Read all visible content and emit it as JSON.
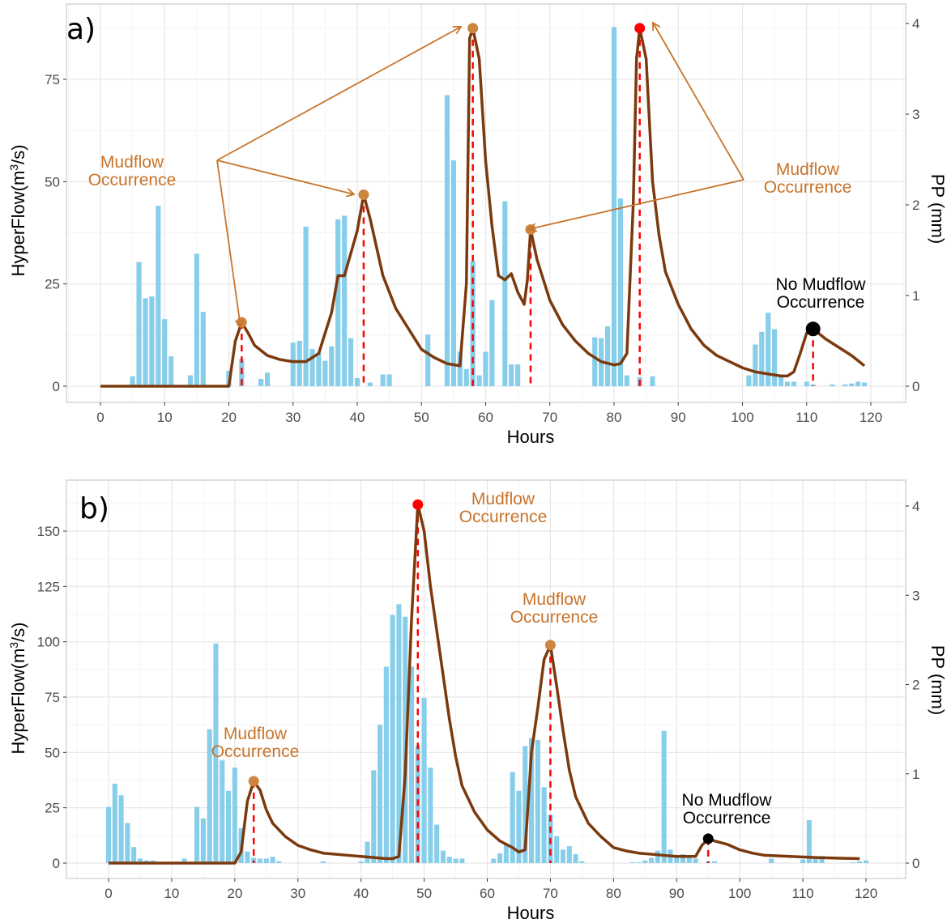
{
  "colors": {
    "bar": "#87CEEB",
    "flow": "#7B3A0E",
    "mudflow": "#CD853F",
    "annotation": "#C8742B",
    "peak": "#FF0000",
    "none": "#000000",
    "dash": "#FF0000"
  },
  "chart_data": [
    {
      "type": "bar+line",
      "panel_label": "a)",
      "xlabel": "Hours",
      "ylabel_parts": [
        "HyperFlow(m",
        "3",
        "/s)"
      ],
      "y2label": "PP (mm)",
      "xlim": [
        -5,
        125
      ],
      "xticks": [
        0,
        10,
        20,
        30,
        40,
        50,
        60,
        70,
        80,
        90,
        100,
        110,
        120
      ],
      "ylim": [
        -4,
        88
      ],
      "yticks": [
        0,
        25,
        50,
        75
      ],
      "y2lim": [
        0,
        4.2
      ],
      "y2ticks": [
        0,
        1,
        2,
        3,
        4
      ],
      "precip_series": {
        "name": "PP (mm)",
        "x": [
          5,
          6,
          7,
          8,
          9,
          10,
          11,
          14,
          15,
          16,
          20,
          22,
          25,
          26,
          30,
          31,
          32,
          33,
          34,
          35,
          36,
          37,
          38,
          39,
          40,
          42,
          44,
          45,
          51,
          54,
          55,
          56,
          57,
          58,
          59,
          60,
          61,
          63,
          64,
          65,
          77,
          78,
          79,
          80,
          81,
          82,
          84,
          86,
          101,
          102,
          103,
          104,
          105,
          106,
          107,
          108,
          110,
          111,
          114,
          116,
          117,
          118,
          119
        ],
        "values": [
          0.11,
          1.37,
          0.97,
          0.99,
          1.99,
          0.74,
          0.33,
          0.12,
          1.46,
          0.82,
          0.17,
          0.3,
          0.08,
          0.15,
          0.48,
          0.5,
          1.76,
          0.41,
          0.37,
          0.28,
          0.44,
          1.84,
          1.88,
          0.53,
          0.09,
          0.04,
          0.13,
          0.13,
          0.57,
          3.21,
          2.49,
          0.38,
          0.19,
          1.38,
          0.12,
          0.38,
          0.95,
          2.04,
          0.24,
          0.24,
          0.54,
          0.53,
          0.66,
          3.96,
          2.07,
          0.12,
          0.1,
          0.11,
          0.12,
          0.46,
          0.6,
          0.81,
          0.63,
          0.13,
          0.05,
          0.05,
          0.05,
          0.02,
          0.02,
          0.02,
          0.03,
          0.05,
          0.04
        ]
      },
      "flow_series": {
        "name": "HyperFlow",
        "x": [
          0,
          20,
          21,
          22,
          23,
          24,
          26,
          28,
          30,
          32,
          34,
          36,
          37,
          38,
          40,
          41,
          42,
          44,
          46,
          48,
          50,
          52,
          54,
          56,
          57,
          57.5,
          58,
          59,
          60,
          61,
          62,
          63,
          64,
          65,
          66,
          66.5,
          67,
          68,
          70,
          72,
          74,
          76,
          78,
          80,
          81,
          82,
          83,
          83.5,
          84,
          85,
          86,
          87,
          88,
          90,
          92,
          94,
          96,
          98,
          100,
          102,
          104,
          106,
          107,
          108,
          109,
          110,
          111,
          113,
          115,
          117,
          119
        ],
        "values": [
          0,
          0,
          11,
          15.6,
          13,
          10,
          7.5,
          6.5,
          6,
          6,
          8,
          18,
          27,
          27,
          38,
          46.8,
          41,
          27,
          19,
          14,
          9,
          7,
          5.5,
          5,
          25,
          85,
          87.5,
          80,
          55,
          39,
          27,
          26,
          27.5,
          23,
          20,
          26,
          38.3,
          31,
          21,
          15,
          11,
          8,
          6,
          5.2,
          5.5,
          8,
          45,
          80,
          87.5,
          80,
          50,
          37,
          28,
          20,
          14,
          10,
          7.5,
          6,
          4.5,
          3.5,
          3,
          2.5,
          2.5,
          3.5,
          8,
          13,
          14,
          11.5,
          9.5,
          7.5,
          5
        ]
      },
      "events": [
        {
          "hour": 22,
          "flow": 15.6,
          "type": "mudflow"
        },
        {
          "hour": 41,
          "flow": 46.8,
          "type": "mudflow"
        },
        {
          "hour": 58,
          "flow": 87.5,
          "type": "mudflow"
        },
        {
          "hour": 67,
          "flow": 38.3,
          "type": "mudflow"
        },
        {
          "hour": 84,
          "flow": 87.5,
          "type": "peak"
        },
        {
          "hour": 111,
          "flow": 14,
          "type": "none"
        }
      ],
      "annotations": [
        {
          "lines": [
            "Mudflow",
            "Occurrence"
          ],
          "type": "mudflow"
        },
        {
          "lines": [
            "Mudflow",
            "Occurrence"
          ],
          "type": "mudflow"
        },
        {
          "lines": [
            "No Mudflow",
            "Occurrence"
          ],
          "type": "none"
        }
      ]
    },
    {
      "type": "bar+line",
      "panel_label": "b)",
      "xlabel": "Hours",
      "ylabel_parts": [
        "HyperFlow(m",
        "3",
        "/s)"
      ],
      "y2label": "PP (mm)",
      "xlim": [
        -5,
        125
      ],
      "xticks": [
        0,
        10,
        20,
        30,
        40,
        50,
        60,
        70,
        80,
        90,
        100,
        110,
        120
      ],
      "ylim": [
        -8,
        168
      ],
      "yticks": [
        0,
        25,
        50,
        75,
        100,
        125,
        150
      ],
      "y2lim": [
        0,
        4.2
      ],
      "y2ticks": [
        0,
        1,
        2,
        3,
        4
      ],
      "precip_series": {
        "name": "PP (mm)",
        "x": [
          0,
          1,
          2,
          3,
          4,
          5,
          6,
          7,
          12,
          14,
          15,
          16,
          17,
          18,
          19,
          20,
          21,
          22,
          23,
          24,
          25,
          26,
          27,
          34,
          40,
          41,
          42,
          43,
          44,
          45,
          46,
          47,
          48,
          49,
          50,
          51,
          52,
          53,
          54,
          55,
          56,
          61,
          62,
          63,
          64,
          65,
          66,
          67,
          68,
          69,
          70,
          71,
          72,
          73,
          74,
          75,
          83,
          84,
          85,
          86,
          87,
          88,
          89,
          90,
          91,
          92,
          93,
          95,
          96,
          105,
          110,
          111,
          112,
          113,
          118,
          119,
          120
        ],
        "values": [
          0.63,
          0.89,
          0.76,
          0.45,
          0.18,
          0.05,
          0.03,
          0.03,
          0.05,
          0.63,
          0.5,
          1.5,
          2.46,
          1.15,
          0.81,
          1.07,
          0.39,
          0.13,
          0.06,
          0.05,
          0.05,
          0.07,
          0.02,
          0.02,
          0.02,
          0.24,
          1.04,
          1.55,
          2.2,
          2.78,
          2.9,
          2.76,
          2.2,
          1.32,
          1.85,
          1.07,
          0.43,
          0.14,
          0.07,
          0.05,
          0.05,
          0.05,
          0.11,
          0.21,
          1.02,
          0.81,
          1.31,
          1.4,
          1.38,
          0.85,
          0.54,
          0.3,
          0.15,
          0.19,
          0.1,
          0.02,
          0.01,
          0.01,
          0.03,
          0.06,
          0.14,
          1.48,
          0.15,
          0.08,
          0.1,
          0.08,
          0.05,
          0.02,
          0.02,
          0.05,
          0.04,
          0.48,
          0.06,
          0.08,
          0.01,
          0.02,
          0.03
        ]
      },
      "flow_series": {
        "name": "HyperFlow",
        "x": [
          0,
          20,
          21,
          22,
          23,
          24,
          25,
          26,
          28,
          30,
          32,
          34,
          38,
          40,
          42,
          44,
          45,
          46,
          47,
          48,
          49,
          50,
          51,
          52,
          53,
          54,
          55,
          56,
          58,
          60,
          62,
          64,
          65,
          66,
          67,
          68,
          69,
          70,
          71,
          72,
          73,
          74,
          76,
          78,
          80,
          82,
          84,
          86,
          88,
          90,
          92,
          93,
          94,
          95,
          96,
          98,
          100,
          102,
          104,
          108,
          112,
          116,
          119
        ],
        "values": [
          0,
          0,
          5,
          28,
          37,
          33,
          24,
          18,
          12,
          8,
          6,
          4.5,
          3.5,
          3,
          2.5,
          2,
          2,
          3,
          40,
          110,
          162,
          150,
          125,
          105,
          85,
          65,
          48,
          35,
          23,
          15,
          10,
          7,
          5,
          6,
          50,
          70,
          92,
          98.5,
          80,
          60,
          42,
          30,
          18,
          12,
          7,
          5.5,
          4.5,
          4,
          3.5,
          3,
          3,
          3,
          8,
          11,
          10,
          8.5,
          6,
          4.5,
          3.5,
          3,
          2.5,
          2.2,
          2
        ]
      },
      "events": [
        {
          "hour": 23,
          "flow": 37,
          "type": "mudflow"
        },
        {
          "hour": 49,
          "flow": 162,
          "type": "peak"
        },
        {
          "hour": 70,
          "flow": 98.5,
          "type": "mudflow"
        },
        {
          "hour": 95,
          "flow": 11,
          "type": "none"
        }
      ],
      "annotations": [
        {
          "lines": [
            "Mudflow",
            "Occurrence"
          ],
          "type": "mudflow"
        },
        {
          "lines": [
            "Mudflow",
            "Occurrence"
          ],
          "type": "mudflow"
        },
        {
          "lines": [
            "Mudflow",
            "Occurrence"
          ],
          "type": "mudflow"
        },
        {
          "lines": [
            "No Mudflow",
            "Occurrence"
          ],
          "type": "none"
        }
      ]
    }
  ]
}
